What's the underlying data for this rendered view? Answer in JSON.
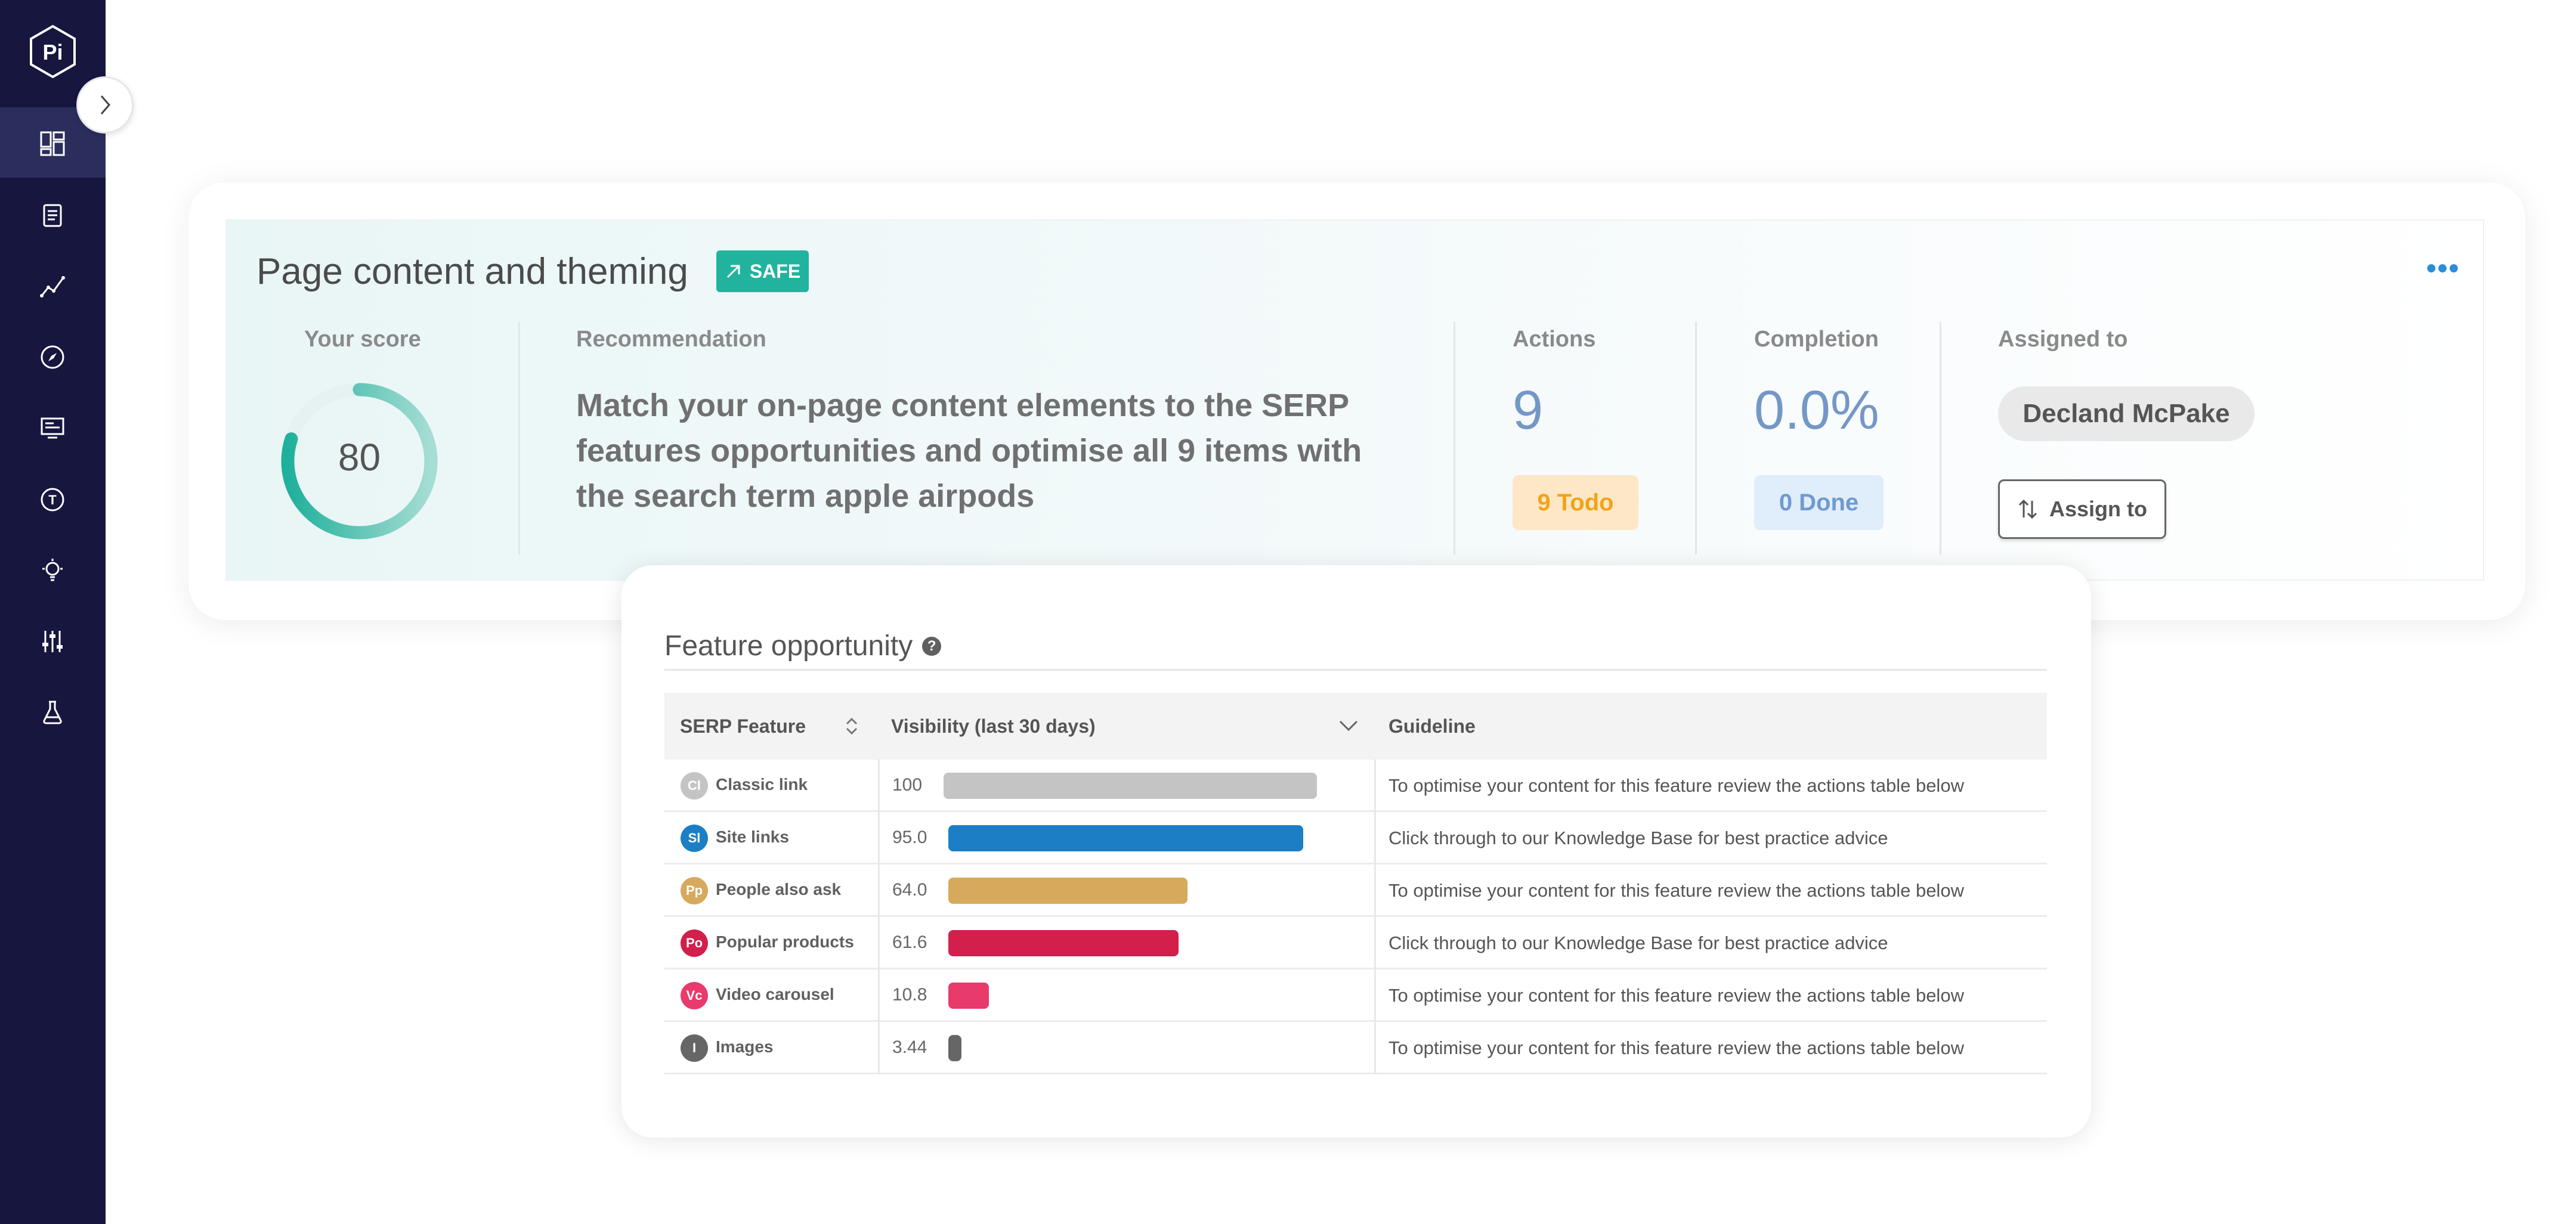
{
  "sidebar": {
    "logo_text": "Pi",
    "nav": [
      {
        "icon": "dashboard-icon"
      },
      {
        "icon": "document-icon"
      },
      {
        "icon": "trend-line-icon"
      },
      {
        "icon": "compass-icon"
      },
      {
        "icon": "monitor-report-icon"
      },
      {
        "icon": "text-circle-icon"
      },
      {
        "icon": "lightbulb-icon"
      },
      {
        "icon": "sliders-icon"
      },
      {
        "icon": "flask-icon"
      }
    ]
  },
  "card": {
    "title": "Page content and theming",
    "badge": "SAFE",
    "score_label": "Your score",
    "score_value": "80",
    "score_fraction": 0.8,
    "recommendation_label": "Recommendation",
    "recommendation_text": "Match your on-page content elements to the SERP features opportunities and optimise all 9 items with the search term apple airpods",
    "actions_label": "Actions",
    "actions_value": "9",
    "todo": "9 Todo",
    "completion_label": "Completion",
    "completion_value": "0.0%",
    "done": "0 Done",
    "assigned_label": "Assigned to",
    "assigned_user": "Decland McPake",
    "assign_button": "Assign to",
    "colors": {
      "accent": "#21b39e",
      "number": "#7497c6",
      "sidebar": "#16163f"
    }
  },
  "feature": {
    "title": "Feature opportunity",
    "help": "?",
    "columns": {
      "serp": "SERP Feature",
      "visibility": "Visibility (last 30 days)",
      "guideline": "Guideline"
    },
    "rows": [
      {
        "abbr": "Cl",
        "name": "Classic link",
        "value": 100,
        "display": "100",
        "color": "#c4c4c4",
        "guideline": "To optimise your content for this feature review the actions table below"
      },
      {
        "abbr": "Sl",
        "name": "Site links",
        "value": 95.0,
        "display": "95.0",
        "color": "#1c7fc5",
        "guideline": "Click through to our Knowledge Base for best practice advice"
      },
      {
        "abbr": "Pp",
        "name": "People also ask",
        "value": 64.0,
        "display": "64.0",
        "color": "#d6a95c",
        "guideline": "To optimise your content for this feature review the actions table below"
      },
      {
        "abbr": "Po",
        "name": "Popular products",
        "value": 61.6,
        "display": "61.6",
        "color": "#d21f4c",
        "guideline": "Click through to our Knowledge Base for best practice advice"
      },
      {
        "abbr": "Vc",
        "name": "Video carousel",
        "value": 10.8,
        "display": "10.8",
        "color": "#e83a6b",
        "guideline": "To optimise your content for this feature review the actions table below"
      },
      {
        "abbr": "I",
        "name": "Images",
        "value": 3.44,
        "display": "3.44",
        "color": "#666666",
        "guideline": "To optimise your content for this feature review the actions table below"
      }
    ]
  }
}
